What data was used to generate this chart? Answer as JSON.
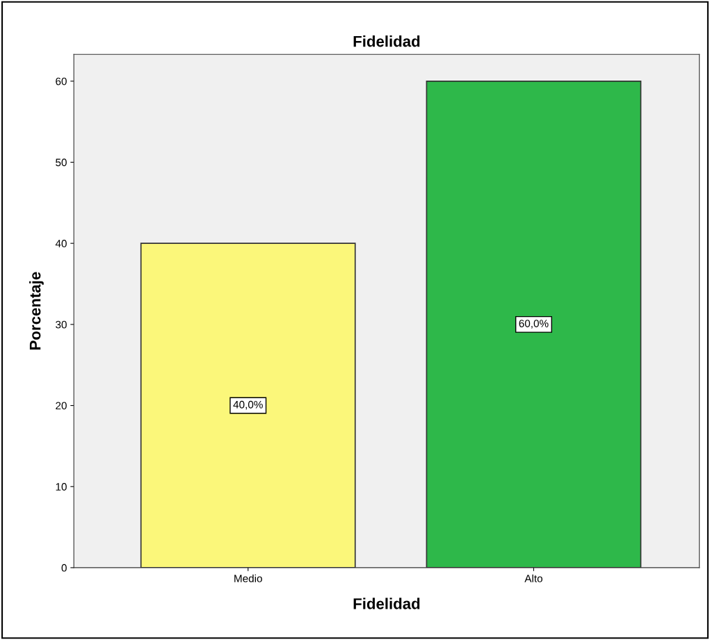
{
  "chart_data": {
    "type": "bar",
    "title": "Fidelidad",
    "xlabel": "Fidelidad",
    "ylabel": "Porcentaje",
    "categories": [
      "Medio",
      "Alto"
    ],
    "values": [
      40,
      60
    ],
    "colors": [
      "#fbf77a",
      "#2eb84a"
    ],
    "value_labels": [
      "40,0%",
      "60,0%"
    ],
    "ylim": [
      0,
      63.3
    ],
    "yticks": [
      0,
      10,
      20,
      30,
      40,
      50,
      60
    ],
    "grid": false
  }
}
